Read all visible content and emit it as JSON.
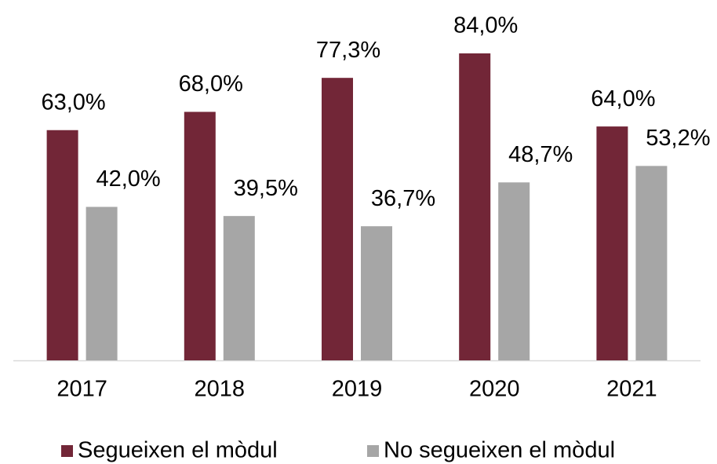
{
  "chart_data": {
    "type": "bar",
    "categories": [
      "2017",
      "2018",
      "2019",
      "2020",
      "2021"
    ],
    "series": [
      {
        "name": "Segueixen el mòdul",
        "color": "#722637",
        "values": [
          63.0,
          68.0,
          77.3,
          84.0,
          64.0
        ],
        "value_labels": [
          "63,0%",
          "68,0%",
          "77,3%",
          "84,0%",
          "64,0%"
        ]
      },
      {
        "name": "No segueixen el mòdul",
        "color": "#a6a6a6",
        "values": [
          42.0,
          39.5,
          36.7,
          48.7,
          53.2
        ],
        "value_labels": [
          "42,0%",
          "39,5%",
          "36,7%",
          "48,7%",
          "53,2%"
        ]
      }
    ],
    "legend": "bottom"
  }
}
